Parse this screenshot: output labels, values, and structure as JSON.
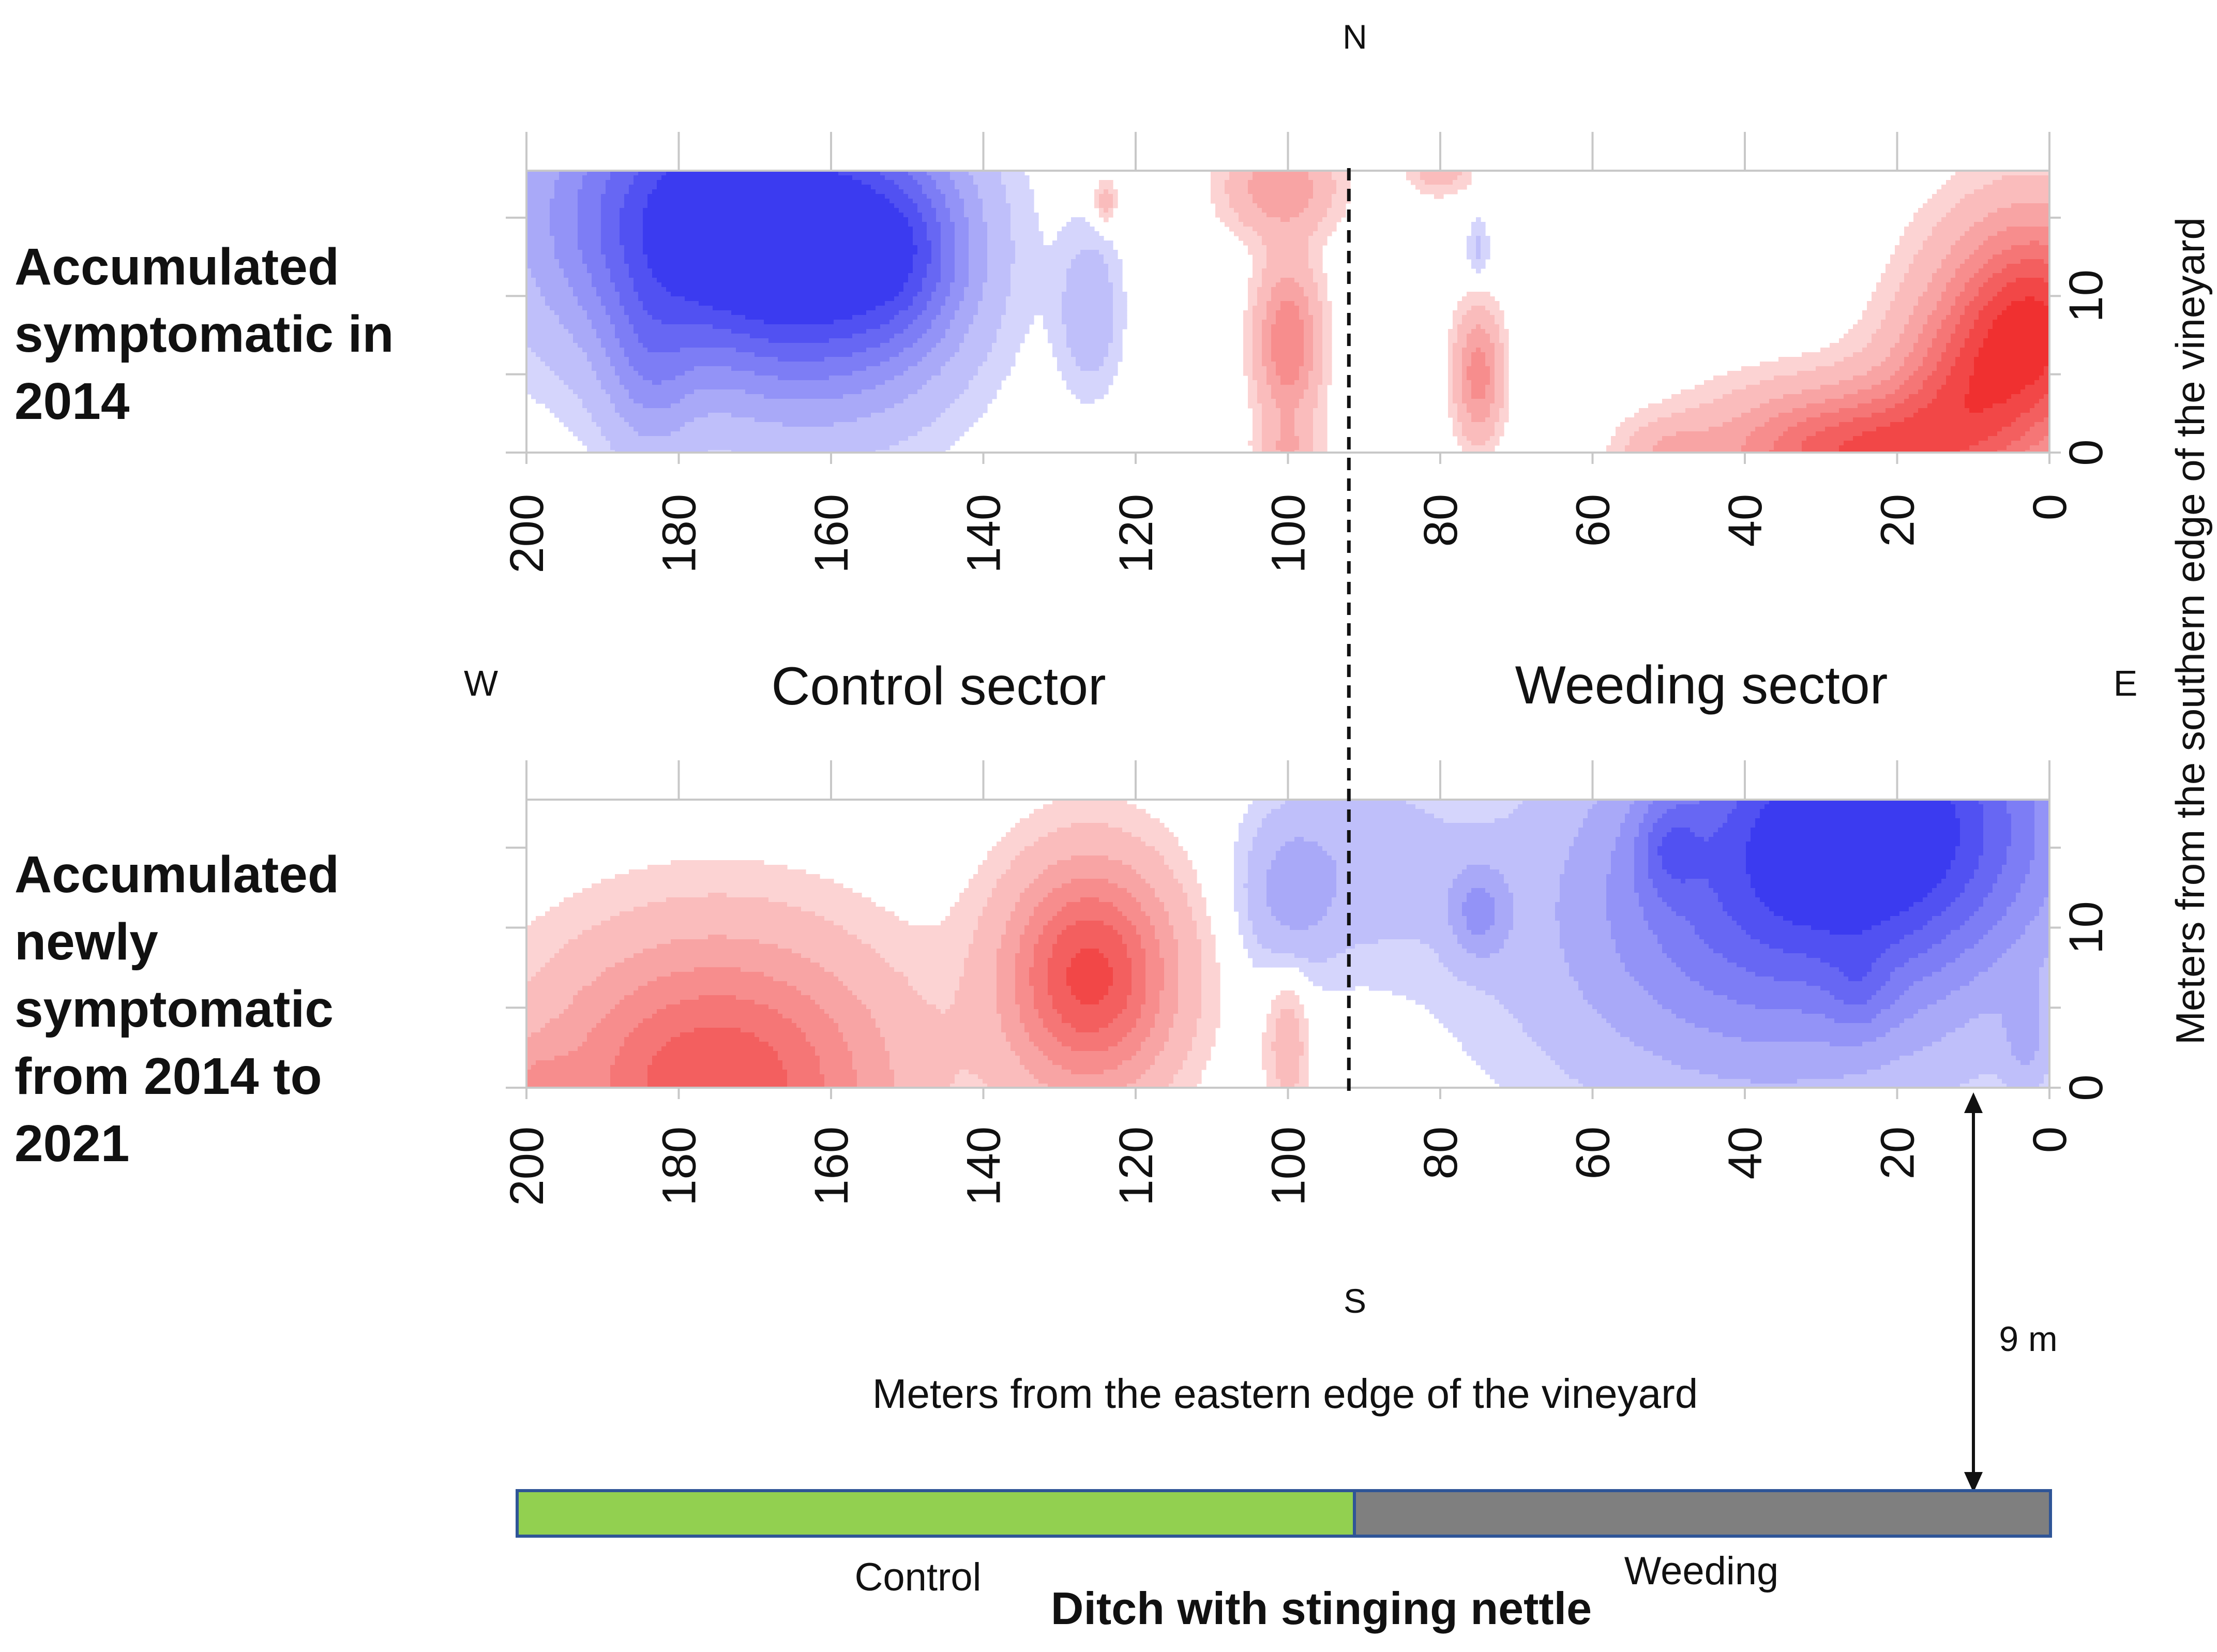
{
  "compass": {
    "north": "N",
    "south": "S",
    "west": "W",
    "east": "E"
  },
  "sector_labels": {
    "control": "Control sector",
    "weeding": "Weeding sector"
  },
  "axes": {
    "xlabel": "Meters from the eastern edge of the vineyard",
    "ylabel": "Meters from the southern edge of the vineyard"
  },
  "distance_note": "9 m",
  "ditch": {
    "title": "Ditch with stinging nettle",
    "control_label": "Control",
    "weeding_label": "Weeding",
    "control_color": "#92d050",
    "weeding_color": "#7f7f7f",
    "border_color": "#2f5597"
  },
  "colors": {
    "negative": "#3b3bf0",
    "positive": "#f03030"
  },
  "chart_data": [
    {
      "type": "heatmap",
      "title": "Accumulated symptomatic in 2014",
      "title_lines": [
        "Accumulated",
        "symptomatic in",
        "2014"
      ],
      "x_ticks": [
        200,
        180,
        160,
        140,
        120,
        100,
        80,
        60,
        40,
        20,
        0
      ],
      "y_ticks": [
        0,
        10
      ],
      "xlim": [
        200,
        0
      ],
      "ylim": [
        0,
        18
      ],
      "sector_boundary_x": 92,
      "hotspots": [
        {
          "x": 175,
          "y": 15,
          "sx": 22,
          "sy": 9,
          "a": -1.0
        },
        {
          "x": 160,
          "y": 11,
          "sx": 16,
          "sy": 9,
          "a": -0.5
        },
        {
          "x": 150,
          "y": 13,
          "sx": 9,
          "sy": 6,
          "a": -0.35
        },
        {
          "x": 184,
          "y": 5,
          "sx": 6,
          "sy": 6,
          "a": -0.25
        },
        {
          "x": 126,
          "y": 9,
          "sx": 4,
          "sy": 5,
          "a": -0.22
        },
        {
          "x": 75,
          "y": 13,
          "sx": 1.5,
          "sy": 2,
          "a": -0.15
        },
        {
          "x": 101,
          "y": 17,
          "sx": 7,
          "sy": 3,
          "a": 0.35
        },
        {
          "x": 100,
          "y": 7,
          "sx": 4,
          "sy": 5,
          "a": 0.5
        },
        {
          "x": 100,
          "y": 0,
          "sx": 4,
          "sy": 2,
          "a": 0.2
        },
        {
          "x": 75,
          "y": 5,
          "sx": 3,
          "sy": 4,
          "a": 0.45
        },
        {
          "x": 124,
          "y": 16,
          "sx": 1.5,
          "sy": 1.5,
          "a": 0.2
        },
        {
          "x": 80,
          "y": 18,
          "sx": 4,
          "sy": 1.5,
          "a": 0.2
        },
        {
          "x": 2,
          "y": 8,
          "sx": 12,
          "sy": 7,
          "a": 0.9
        },
        {
          "x": 25,
          "y": 0,
          "sx": 18,
          "sy": 4,
          "a": 0.75
        },
        {
          "x": 12,
          "y": 4,
          "sx": 10,
          "sy": 5,
          "a": 0.35
        },
        {
          "x": 50,
          "y": 0,
          "sx": 6,
          "sy": 2,
          "a": 0.2
        }
      ]
    },
    {
      "type": "heatmap",
      "title": "Accumulated newly symptomatic from 2014 to 2021",
      "title_lines": [
        "Accumulated",
        "newly",
        "symptomatic",
        "from 2014 to",
        "2021"
      ],
      "x_ticks": [
        200,
        180,
        160,
        140,
        120,
        100,
        80,
        60,
        40,
        20,
        0
      ],
      "y_ticks": [
        0,
        10
      ],
      "xlim": [
        200,
        0
      ],
      "ylim": [
        0,
        18
      ],
      "sector_boundary_x": 92,
      "hotspots": [
        {
          "x": 175,
          "y": 0,
          "sx": 22,
          "sy": 9,
          "a": 0.75
        },
        {
          "x": 126,
          "y": 7,
          "sx": 11,
          "sy": 7,
          "a": 0.8
        },
        {
          "x": 100,
          "y": 3,
          "sx": 3,
          "sy": 5,
          "a": 0.2
        },
        {
          "x": 200,
          "y": 0,
          "sx": 6,
          "sy": 3,
          "a": 0.2
        },
        {
          "x": 22,
          "y": 17,
          "sx": 24,
          "sy": 9,
          "a": -0.85
        },
        {
          "x": 38,
          "y": 10,
          "sx": 30,
          "sy": 11,
          "a": -0.5
        },
        {
          "x": 50,
          "y": 15,
          "sx": 4,
          "sy": 3,
          "a": -0.25
        },
        {
          "x": 75,
          "y": 11,
          "sx": 4,
          "sy": 3,
          "a": -0.3
        },
        {
          "x": 100,
          "y": 12,
          "sx": 6,
          "sy": 5,
          "a": -0.25
        },
        {
          "x": 90,
          "y": 14,
          "sx": 12,
          "sy": 6,
          "a": -0.18
        },
        {
          "x": 3,
          "y": 3,
          "sx": 3,
          "sy": 3,
          "a": -0.2
        },
        {
          "x": 25,
          "y": 6,
          "sx": 4,
          "sy": 3,
          "a": -0.15
        }
      ]
    }
  ]
}
